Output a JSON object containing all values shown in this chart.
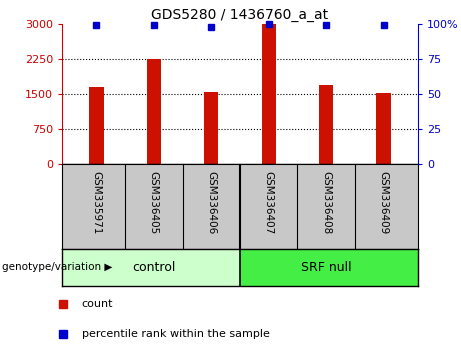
{
  "title": "GDS5280 / 1436760_a_at",
  "samples": [
    "GSM335971",
    "GSM336405",
    "GSM336406",
    "GSM336407",
    "GSM336408",
    "GSM336409"
  ],
  "counts": [
    1650,
    2250,
    1550,
    3000,
    1700,
    1520
  ],
  "percentile_ranks": [
    99,
    99,
    98,
    100,
    99,
    99
  ],
  "bar_color": "#cc1100",
  "dot_color": "#0000cc",
  "ylim_left": [
    0,
    3000
  ],
  "ylim_right": [
    0,
    100
  ],
  "yticks_left": [
    0,
    750,
    1500,
    2250,
    3000
  ],
  "yticks_right": [
    0,
    25,
    50,
    75,
    100
  ],
  "ytick_labels_left": [
    "0",
    "750",
    "1500",
    "2250",
    "3000"
  ],
  "ytick_labels_right": [
    "0",
    "25",
    "50",
    "75",
    "100%"
  ],
  "control_label": "control",
  "srf_null_label": "SRF null",
  "control_color": "#ccffcc",
  "srf_null_color": "#44ee44",
  "genotype_label": "genotype/variation",
  "legend_count_label": "count",
  "legend_percentile_label": "percentile rank within the sample",
  "bar_width": 0.25,
  "grid_color": "#000000",
  "tick_label_area_color": "#c8c8c8",
  "plot_bg_color": "#ffffff",
  "fig_bg_color": "#ffffff"
}
